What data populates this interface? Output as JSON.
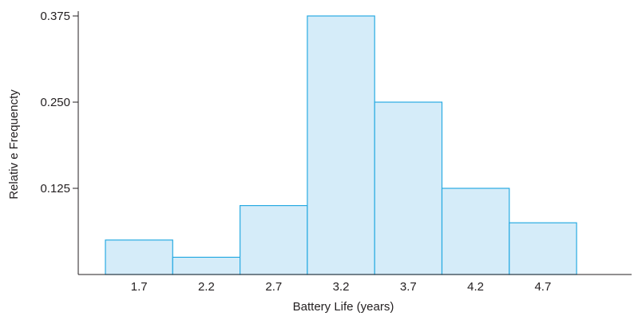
{
  "chart_data": {
    "type": "bar",
    "title": "",
    "xlabel": "Battery Life (years)",
    "ylabel": "Relativ e Frequencty",
    "categories": [
      "1.7",
      "2.2",
      "2.7",
      "3.2",
      "3.7",
      "4.2",
      "4.7"
    ],
    "values": [
      0.05,
      0.025,
      0.1,
      0.375,
      0.25,
      0.125,
      0.075
    ],
    "yticks": [
      "0.125",
      "0.250",
      "0.375"
    ],
    "ytick_values": [
      0.125,
      0.25,
      0.375
    ],
    "ylim": [
      0,
      0.375
    ],
    "grid": false,
    "colors": {
      "fill": "#d5ecf9",
      "stroke": "#29abe2",
      "axis": "#231f20"
    }
  }
}
